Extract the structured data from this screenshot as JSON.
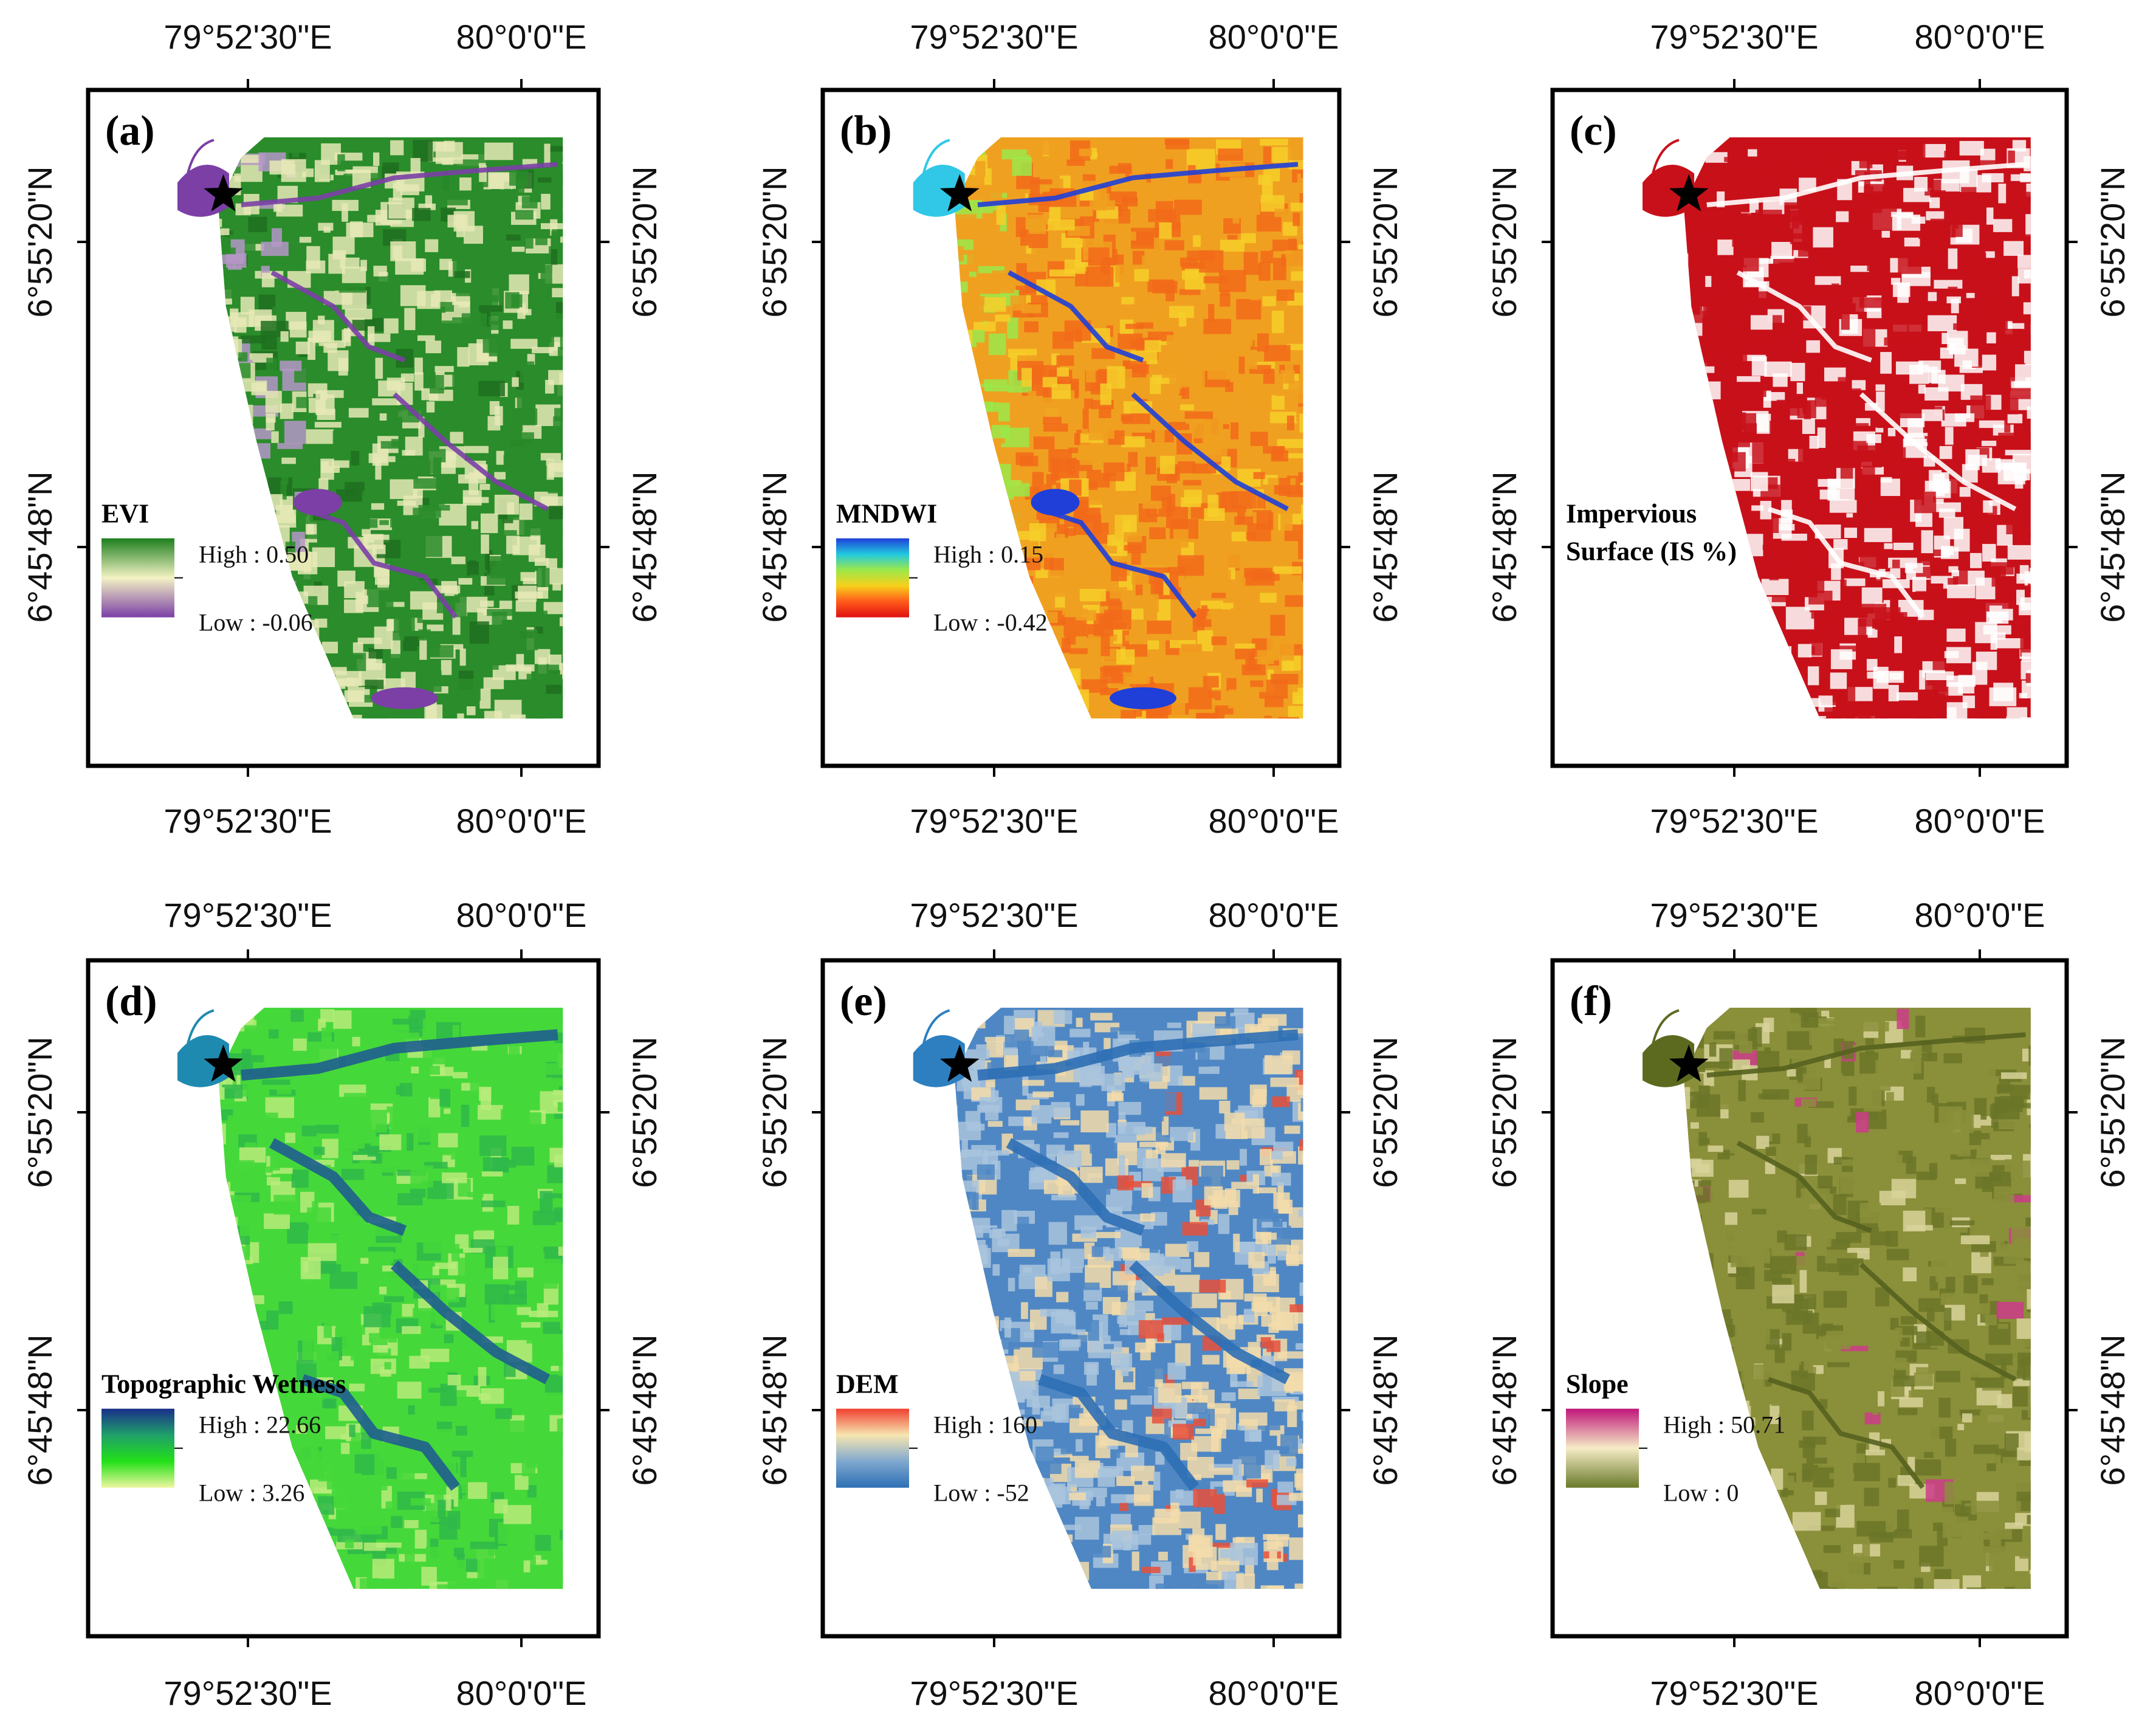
{
  "figure": {
    "coord_labels": {
      "lon_a": "79°52'30\"E",
      "lon_b": "80°0'0\"E",
      "lat_a": "6°55'20\"N",
      "lat_b": "6°45'48\"N"
    },
    "panels": [
      {
        "id": "a",
        "letter": "(a)",
        "legend_title": "EVI",
        "legend_title2": "",
        "high": "High : 0.50",
        "low": "Low : -0.06",
        "gradient": [
          "#1e7f1e",
          "#f3f2c4",
          "#7b3fa6"
        ],
        "map_colors": [
          "#2a8c2a",
          "#e6e9b6",
          "#b596c8",
          "#6a2aa0"
        ],
        "pattern": "evi"
      },
      {
        "id": "b",
        "letter": "(b)",
        "legend_title": "MNDWI",
        "legend_title2": "",
        "high": "High : 0.15",
        "low": "Low : -0.42",
        "gradient": [
          "#1f3fd8",
          "#20c8e0",
          "#9be84a",
          "#f7d11a",
          "#ff5a1a",
          "#e01010"
        ],
        "map_colors": [
          "#f0a020",
          "#f26a1a",
          "#f6cf2a",
          "#1f3fd8"
        ],
        "pattern": "mndwi"
      },
      {
        "id": "c",
        "letter": "(c)",
        "legend_title": "Impervious",
        "legend_title2": "Surface (IS %)",
        "high": "",
        "low": "",
        "gradient": [],
        "map_colors": [
          "#c8101a",
          "#ffffff"
        ],
        "pattern": "is"
      },
      {
        "id": "d",
        "letter": "(d)",
        "legend_title": "Topographic Wetness",
        "legend_title2": "",
        "high": "High : 22.66",
        "low": "Low : 3.26",
        "gradient": [
          "#1a2f8a",
          "#1fa06a",
          "#22e018",
          "#eef7a0"
        ],
        "map_colors": [
          "#45d83a",
          "#2a7a8a",
          "#b9ec7a"
        ],
        "pattern": "twi"
      },
      {
        "id": "e",
        "letter": "(e)",
        "legend_title": "DEM",
        "legend_title2": "",
        "high": "High : 160",
        "low": "Low : -52",
        "gradient": [
          "#f04030",
          "#f7e6b0",
          "#7fa8cf",
          "#2d6fb5"
        ],
        "map_colors": [
          "#4f87c4",
          "#a9c4dd",
          "#f3dcaa",
          "#e8503a"
        ],
        "pattern": "dem"
      },
      {
        "id": "f",
        "letter": "(f)",
        "legend_title": "Slope",
        "legend_title2": "",
        "high": "High : 50.71",
        "low": "Low : 0",
        "gradient": [
          "#c0167a",
          "#f6ecc6",
          "#6a7a2a"
        ],
        "map_colors": [
          "#8a8f3a",
          "#6b7628",
          "#d8d49a",
          "#cc3c8a"
        ],
        "pattern": "slope"
      }
    ],
    "star_color": "#000000",
    "frame_color": "#000000"
  }
}
